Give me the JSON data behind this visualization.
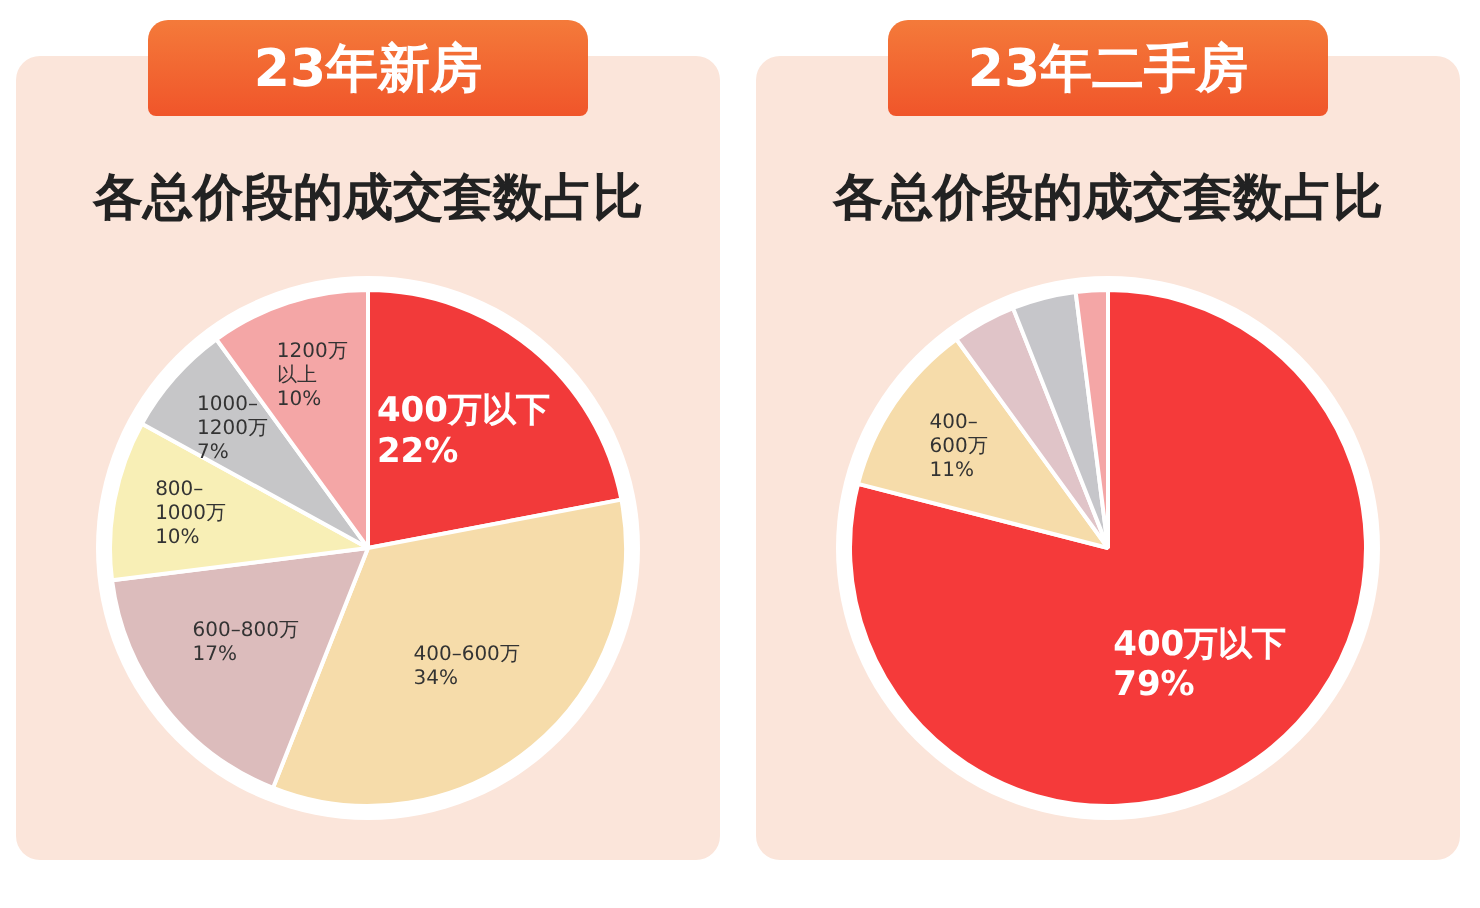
{
  "chart_data": [
    {
      "type": "pie",
      "title": "23年新房",
      "subtitle": "各总价段的成交套数占比",
      "categories": [
        "400万以下",
        "400–600万",
        "600–800万",
        "800–1000万",
        "1000–1200万",
        "1200万以上"
      ],
      "values": [
        22,
        34,
        17,
        10,
        7,
        10
      ],
      "value_labels": [
        "22%",
        "34%",
        "17%",
        "10%",
        "7%",
        "10%"
      ],
      "colors": [
        "#f23a3a",
        "#f6dcaa",
        "#dcbcbc",
        "#f8efb6",
        "#c6c6c8",
        "#f4a6a6"
      ]
    },
    {
      "type": "pie",
      "title": "23年二手房",
      "subtitle": "各总价段的成交套数占比",
      "categories": [
        "400万以下",
        "400–600万",
        null,
        null,
        null
      ],
      "values": [
        79,
        11,
        4,
        4,
        2
      ],
      "value_labels": [
        "79%",
        "11%",
        null,
        null,
        null
      ],
      "colors": [
        "#f53a3a",
        "#f6dcaa",
        "#e0c4c8",
        "#c6c6ca",
        "#f4a6a6"
      ]
    }
  ]
}
